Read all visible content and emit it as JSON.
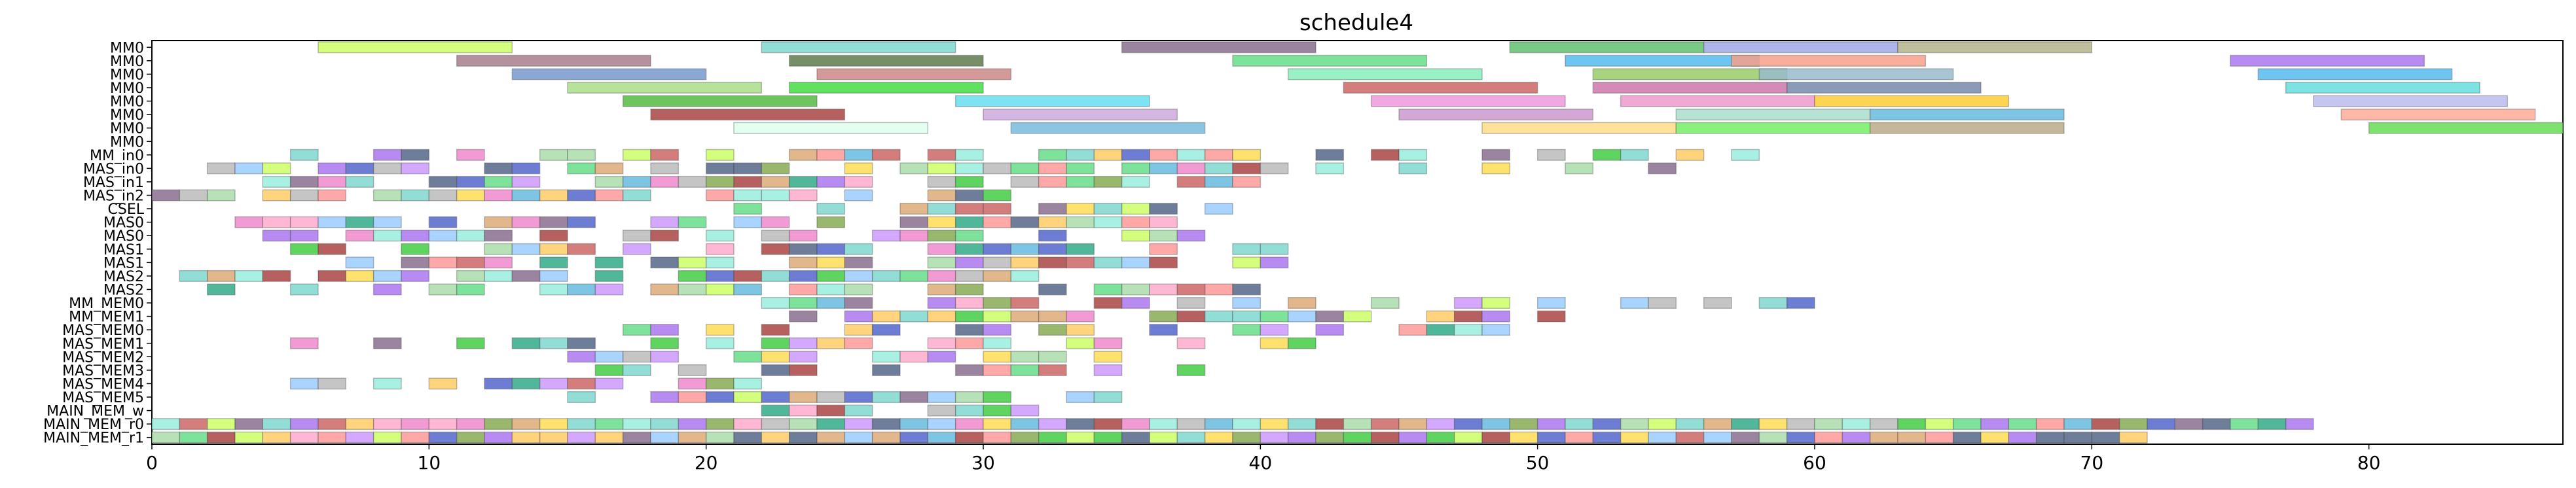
{
  "chart_data": {
    "type": "gantt",
    "title": "schedule4",
    "xlabel": "",
    "ylabel": "",
    "xlim": [
      0,
      87
    ],
    "x_ticks": [
      0,
      10,
      20,
      30,
      40,
      50,
      60,
      70,
      80
    ],
    "grid": false,
    "rows": [
      "MM0",
      "MM0",
      "MM0",
      "MM0",
      "MM0",
      "MM0",
      "MM0",
      "MM0",
      "MM_in0",
      "MAS_in0",
      "MAS_in1",
      "MAS_in2",
      "CSEL",
      "MAS0",
      "MAS0",
      "MAS1",
      "MAS1",
      "MAS2",
      "MAS2",
      "MM_MEM0",
      "MM_MEM1",
      "MAS_MEM0",
      "MAS_MEM1",
      "MAS_MEM2",
      "MAS_MEM3",
      "MAS_MEM4",
      "MAS_MEM5",
      "MAIN_MEM_w",
      "MAIN_MEM_r0",
      "MAIN_MEM_r1"
    ],
    "tasks": [
      {
        "row": 0,
        "start": 6,
        "end": 13,
        "color": "#ccff66"
      },
      {
        "row": 0,
        "start": 22,
        "end": 29,
        "color": "#7fd8d0"
      },
      {
        "row": 0,
        "start": 35,
        "end": 42,
        "color": "#8a6f8f"
      },
      {
        "row": 0,
        "start": 49,
        "end": 56,
        "color": "#5fbf6f"
      },
      {
        "row": 0,
        "start": 56,
        "end": 63,
        "color": "#9fa8e8"
      },
      {
        "row": 0,
        "start": 63,
        "end": 70,
        "color": "#b4b48a"
      },
      {
        "row": 1,
        "start": 11,
        "end": 18,
        "color": "#a87c8c"
      },
      {
        "row": 1,
        "start": 23,
        "end": 30,
        "color": "#5f7a4f"
      },
      {
        "row": 1,
        "start": 39,
        "end": 46,
        "color": "#66dd88"
      },
      {
        "row": 1,
        "start": 51,
        "end": 58,
        "color": "#55bbee"
      },
      {
        "row": 1,
        "start": 57,
        "end": 64,
        "color": "#f7a08a"
      },
      {
        "row": 1,
        "start": 75,
        "end": 82,
        "color": "#aa77ee"
      },
      {
        "row": 2,
        "start": 13,
        "end": 20,
        "color": "#7799cc"
      },
      {
        "row": 2,
        "start": 24,
        "end": 31,
        "color": "#cc8888"
      },
      {
        "row": 2,
        "start": 41,
        "end": 48,
        "color": "#88eebb"
      },
      {
        "row": 2,
        "start": 52,
        "end": 59,
        "color": "#99cc66"
      },
      {
        "row": 2,
        "start": 58,
        "end": 65,
        "color": "#99bbcc"
      },
      {
        "row": 2,
        "start": 76,
        "end": 83,
        "color": "#55bbee"
      },
      {
        "row": 3,
        "start": 15,
        "end": 22,
        "color": "#aadd88"
      },
      {
        "row": 3,
        "start": 23,
        "end": 30,
        "color": "#44dd44"
      },
      {
        "row": 3,
        "start": 43,
        "end": 50,
        "color": "#cc6666"
      },
      {
        "row": 3,
        "start": 52,
        "end": 59,
        "color": "#cc77aa"
      },
      {
        "row": 3,
        "start": 59,
        "end": 66,
        "color": "#7788aa"
      },
      {
        "row": 3,
        "start": 77,
        "end": 84,
        "color": "#66dddd"
      },
      {
        "row": 4,
        "start": 17,
        "end": 24,
        "color": "#55bb44"
      },
      {
        "row": 4,
        "start": 29,
        "end": 36,
        "color": "#66ddee"
      },
      {
        "row": 4,
        "start": 44,
        "end": 51,
        "color": "#ee99dd"
      },
      {
        "row": 4,
        "start": 53,
        "end": 60,
        "color": "#ee99cc"
      },
      {
        "row": 4,
        "start": 60,
        "end": 67,
        "color": "#ffcc33"
      },
      {
        "row": 4,
        "start": 78,
        "end": 85,
        "color": "#bbbbee"
      },
      {
        "row": 5,
        "start": 18,
        "end": 25,
        "color": "#aa4444"
      },
      {
        "row": 5,
        "start": 30,
        "end": 37,
        "color": "#ccaadd"
      },
      {
        "row": 5,
        "start": 45,
        "end": 52,
        "color": "#cc99cc"
      },
      {
        "row": 5,
        "start": 55,
        "end": 62,
        "color": "#aaddcc"
      },
      {
        "row": 5,
        "start": 62,
        "end": 69,
        "color": "#66bbdd"
      },
      {
        "row": 5,
        "start": 79,
        "end": 86,
        "color": "#ffaa99"
      },
      {
        "row": 6,
        "start": 21,
        "end": 28,
        "color": "#ddffee"
      },
      {
        "row": 6,
        "start": 31,
        "end": 38,
        "color": "#77bbdd"
      },
      {
        "row": 6,
        "start": 48,
        "end": 55,
        "color": "#ffdd88"
      },
      {
        "row": 6,
        "start": 55,
        "end": 62,
        "color": "#77ee66"
      },
      {
        "row": 6,
        "start": 62,
        "end": 69,
        "color": "#bbaa88"
      },
      {
        "row": 6,
        "start": 80,
        "end": 87,
        "color": "#66dd55"
      }
    ],
    "unit_block_rows": [
      {
        "row": 8,
        "count": 32,
        "start": 5
      },
      {
        "row": 9,
        "count": 34,
        "start": 2
      },
      {
        "row": 10,
        "count": 28,
        "start": 4
      },
      {
        "row": 11,
        "count": 24,
        "start": 0
      },
      {
        "row": 12,
        "count": 12,
        "start": 21
      },
      {
        "row": 13,
        "count": 26,
        "start": 3
      },
      {
        "row": 14,
        "count": 22,
        "start": 4
      },
      {
        "row": 15,
        "count": 22,
        "start": 5
      },
      {
        "row": 16,
        "count": 24,
        "start": 7
      },
      {
        "row": 17,
        "count": 26,
        "start": 1
      },
      {
        "row": 18,
        "count": 24,
        "start": 2
      },
      {
        "row": 19,
        "count": 22,
        "start": 22
      },
      {
        "row": 20,
        "count": 22,
        "start": 23
      },
      {
        "row": 21,
        "count": 18,
        "start": 17
      },
      {
        "row": 22,
        "count": 20,
        "start": 5
      },
      {
        "row": 23,
        "count": 14,
        "start": 15
      },
      {
        "row": 24,
        "count": 12,
        "start": 16
      },
      {
        "row": 25,
        "count": 12,
        "start": 5
      },
      {
        "row": 26,
        "count": 16,
        "start": 15
      },
      {
        "row": 27,
        "count": 8,
        "start": 22
      },
      {
        "row": 28,
        "count": 78,
        "start": 0
      },
      {
        "row": 29,
        "count": 72,
        "start": 0
      }
    ]
  }
}
